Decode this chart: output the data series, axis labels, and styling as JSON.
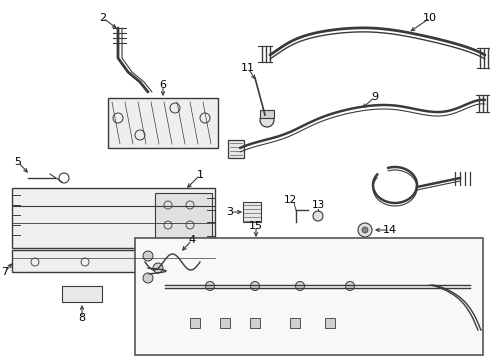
{
  "bg_color": "#f5f5f5",
  "line_color": "#3a3a3a",
  "text_color": "#000000",
  "fig_width": 4.9,
  "fig_height": 3.6,
  "dpi": 100,
  "border_color": "#888888"
}
